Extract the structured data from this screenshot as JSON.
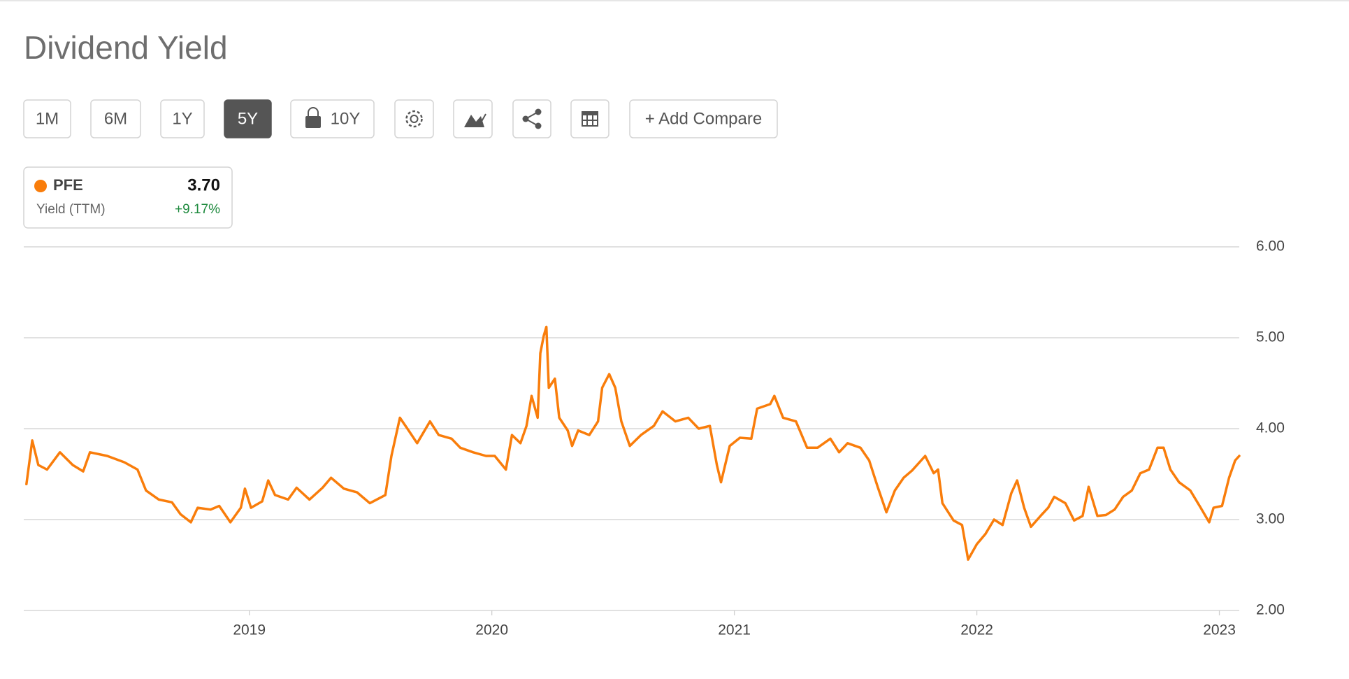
{
  "chart_data": {
    "type": "line",
    "title": "Dividend Yield",
    "toolbar": {
      "ranges": [
        "1M",
        "6M",
        "1Y",
        "5Y",
        "10Y"
      ],
      "compare": "+ Add Compare"
    },
    "legend_card": {
      "value": "3.70",
      "metric": "Yield (TTM)",
      "change": "+9.17%"
    },
    "x": [
      2018.081,
      2018.105,
      2018.13,
      2018.166,
      2018.219,
      2018.272,
      2018.315,
      2018.343,
      2018.414,
      2018.485,
      2018.539,
      2018.574,
      2018.627,
      2018.681,
      2018.716,
      2018.759,
      2018.787,
      2018.84,
      2018.876,
      2018.922,
      2018.965,
      2018.982,
      2019.007,
      2019.053,
      2019.078,
      2019.106,
      2019.16,
      2019.195,
      2019.248,
      2019.302,
      2019.337,
      2019.39,
      2019.444,
      2019.497,
      2019.561,
      2019.586,
      2019.621,
      2019.657,
      2019.692,
      2019.745,
      2019.781,
      2019.834,
      2019.87,
      2019.923,
      2019.976,
      2020.012,
      2020.058,
      2020.083,
      2020.118,
      2020.143,
      2020.164,
      2020.189,
      2020.2,
      2020.214,
      2020.225,
      2020.235,
      2020.26,
      2020.278,
      2020.313,
      2020.331,
      2020.356,
      2020.402,
      2020.438,
      2020.455,
      2020.484,
      2020.509,
      2020.534,
      2020.569,
      2020.615,
      2020.668,
      2020.704,
      2020.757,
      2020.81,
      2020.853,
      2020.899,
      2020.928,
      2020.945,
      2020.981,
      2021.023,
      2021.07,
      2021.094,
      2021.148,
      2021.165,
      2021.201,
      2021.254,
      2021.3,
      2021.343,
      2021.396,
      2021.432,
      2021.467,
      2021.52,
      2021.556,
      2021.591,
      2021.627,
      2021.662,
      2021.698,
      2021.733,
      2021.787,
      2021.822,
      2021.84,
      2021.858,
      2021.904,
      2021.939,
      2021.964,
      2022.0,
      2022.035,
      2022.071,
      2022.106,
      2022.142,
      2022.166,
      2022.195,
      2022.223,
      2022.266,
      2022.294,
      2022.319,
      2022.365,
      2022.401,
      2022.436,
      2022.461,
      2022.497,
      2022.532,
      2022.568,
      2022.603,
      2022.639,
      2022.674,
      2022.71,
      2022.745,
      2022.77,
      2022.798,
      2022.834,
      2022.88,
      2022.923,
      2022.958,
      2022.976,
      2023.011,
      2023.04,
      2023.065,
      2023.082
    ],
    "series": [
      {
        "name": "PFE",
        "color": "#f97d0b",
        "values": [
          3.39,
          3.87,
          3.6,
          3.55,
          3.74,
          3.6,
          3.53,
          3.74,
          3.7,
          3.63,
          3.55,
          3.32,
          3.22,
          3.19,
          3.06,
          2.97,
          3.13,
          3.11,
          3.15,
          2.97,
          3.13,
          3.34,
          3.13,
          3.2,
          3.43,
          3.27,
          3.22,
          3.35,
          3.22,
          3.35,
          3.46,
          3.34,
          3.3,
          3.18,
          3.27,
          3.7,
          4.12,
          3.98,
          3.84,
          4.08,
          3.93,
          3.89,
          3.79,
          3.74,
          3.7,
          3.7,
          3.55,
          3.93,
          3.84,
          4.03,
          4.36,
          4.12,
          4.83,
          5.02,
          5.12,
          4.45,
          4.55,
          4.12,
          3.98,
          3.81,
          3.98,
          3.93,
          4.08,
          4.45,
          4.6,
          4.45,
          4.08,
          3.81,
          3.93,
          4.03,
          4.19,
          4.08,
          4.12,
          4.0,
          4.03,
          3.6,
          3.41,
          3.81,
          3.9,
          3.89,
          4.22,
          4.27,
          4.36,
          4.12,
          4.08,
          3.79,
          3.79,
          3.89,
          3.74,
          3.84,
          3.79,
          3.65,
          3.36,
          3.08,
          3.32,
          3.46,
          3.54,
          3.7,
          3.51,
          3.55,
          3.18,
          2.99,
          2.94,
          2.56,
          2.73,
          2.84,
          3.0,
          2.94,
          3.29,
          3.43,
          3.13,
          2.92,
          3.05,
          3.13,
          3.25,
          3.18,
          2.99,
          3.04,
          3.36,
          3.04,
          3.05,
          3.11,
          3.25,
          3.32,
          3.51,
          3.55,
          3.79,
          3.79,
          3.55,
          3.41,
          3.32,
          3.13,
          2.97,
          3.13,
          3.15,
          3.46,
          3.65,
          3.7
        ]
      }
    ],
    "xlim": [
      2018.07,
      2023.082
    ],
    "xticks": [
      2019,
      2020,
      2021,
      2022,
      2023
    ],
    "ylim": [
      2,
      6
    ],
    "yticks": [
      {
        "value": 2,
        "label": "2.00"
      },
      {
        "value": 3,
        "label": "3.00"
      },
      {
        "value": 4,
        "label": "4.00"
      },
      {
        "value": 5,
        "label": "5.00"
      },
      {
        "value": 6,
        "label": "6.00"
      }
    ],
    "grid": true
  }
}
